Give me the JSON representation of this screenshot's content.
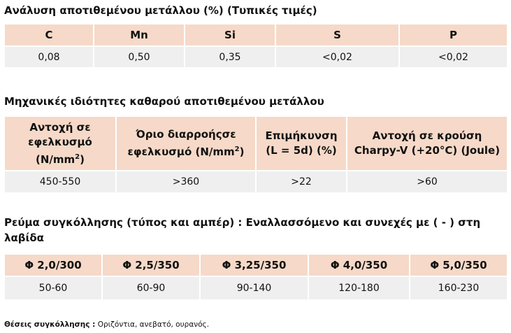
{
  "sections": [
    {
      "title": "Ανάλυση αποτιθεμένου μετάλλου (%) (Τυπικές τιμές)",
      "table": {
        "header": [
          "C",
          "Mn",
          "Si",
          "S",
          "P"
        ],
        "rows": [
          [
            "0,08",
            "0,50",
            "0,35",
            "<0,02",
            "<0,02"
          ]
        ]
      }
    },
    {
      "title": "Μηχανικές ιδιότητες καθαρού αποτιθεμένου μετάλλου",
      "table": {
        "header": [
          {
            "text": "Αντοχή σε εφελκυσμό (N/mm",
            "sup": "2",
            "after": ")"
          },
          {
            "text": "Όριο διαρροήςσε εφελκυσμό (N/mm",
            "sup": "2",
            "after": ")"
          },
          "Επιμήκυνση (L = 5d) (%)",
          "Αντοχή σε κρούση Charpy-V (+20°C) (Joule)"
        ],
        "rows": [
          [
            "450-550",
            ">360",
            ">22",
            ">60"
          ]
        ]
      }
    },
    {
      "title": "Ρεύμα συγκόλλησης (τύπος και αμπέρ) : Εναλλασσόμενο και συνεχές με ( - ) στη λαβίδα",
      "table": {
        "header": [
          "Φ 2,0/300",
          "Φ 2,5/350",
          "Φ 3,25/350",
          "Φ 4,0/350",
          "Φ 5,0/350"
        ],
        "rows": [
          [
            "50-60",
            "60-90",
            "90-140",
            "120-180",
            "160-230"
          ]
        ]
      }
    }
  ],
  "footer": {
    "label": "Θέσεις συγκόλλησης :",
    "text": "Οριζόντια, ανεβατό, ουρανός."
  }
}
